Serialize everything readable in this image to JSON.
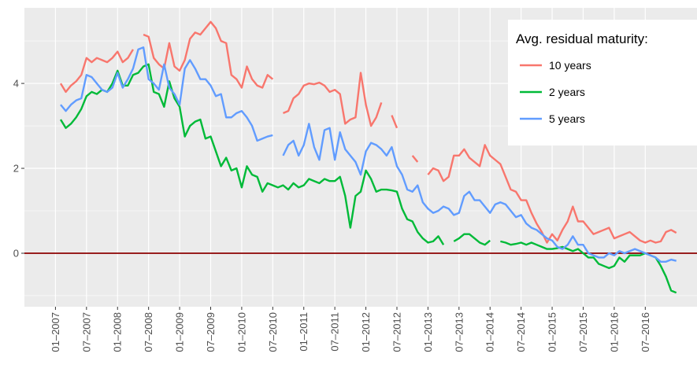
{
  "chart_data": {
    "type": "line",
    "legend_title": "Avg. residual maturity:",
    "legend_position": "top-right",
    "grid": true,
    "ylim": [
      -1.26,
      5.78
    ],
    "yticks": [
      0,
      2,
      4
    ],
    "xlim": [
      "07–2006",
      "05–2017"
    ],
    "xticks": [
      "01–2007",
      "07–2007",
      "01–2008",
      "07–2008",
      "01–2009",
      "07–2009",
      "01–2010",
      "07–2010",
      "01–2011",
      "07–2011",
      "01–2012",
      "07–2012",
      "01–2013",
      "07–2013",
      "01–2014",
      "07–2014",
      "01–2015",
      "07–2015",
      "01–2016",
      "07–2016"
    ],
    "hline": 0,
    "hline_color": "#8b0000",
    "x": [
      "02–2007",
      "03–2007",
      "04–2007",
      "05–2007",
      "06–2007",
      "07–2007",
      "08–2007",
      "09–2007",
      "10–2007",
      "11–2007",
      "12–2007",
      "01–2008",
      "02–2008",
      "03–2008",
      "04–2008",
      "05–2008",
      "06–2008",
      "07–2008",
      "08–2008",
      "09–2008",
      "10–2008",
      "11–2008",
      "12–2008",
      "01–2009",
      "02–2009",
      "03–2009",
      "04–2009",
      "05–2009",
      "06–2009",
      "07–2009",
      "08–2009",
      "09–2009",
      "10–2009",
      "11–2009",
      "12–2009",
      "01–2010",
      "02–2010",
      "03–2010",
      "04–2010",
      "05–2010",
      "06–2010",
      "07–2010",
      "08–2010",
      "09–2010",
      "10–2010",
      "11–2010",
      "12–2010",
      "01–2011",
      "02–2011",
      "03–2011",
      "04–2011",
      "05–2011",
      "06–2011",
      "07–2011",
      "08–2011",
      "09–2011",
      "10–2011",
      "11–2011",
      "12–2011",
      "01–2012",
      "02–2012",
      "03–2012",
      "04–2012",
      "05–2012",
      "06–2012",
      "07–2012",
      "08–2012",
      "09–2012",
      "10–2012",
      "11–2012",
      "12–2012",
      "01–2013",
      "02–2013",
      "03–2013",
      "04–2013",
      "05–2013",
      "06–2013",
      "07–2013",
      "08–2013",
      "09–2013",
      "10–2013",
      "11–2013",
      "12–2013",
      "01–2014",
      "02–2014",
      "03–2014",
      "04–2014",
      "05–2014",
      "06–2014",
      "07–2014",
      "08–2014",
      "09–2014",
      "10–2014",
      "11–2014",
      "12–2014",
      "01–2015",
      "02–2015",
      "03–2015",
      "04–2015",
      "05–2015",
      "06–2015",
      "07–2015",
      "08–2015",
      "09–2015",
      "10–2015",
      "11–2015",
      "12–2015",
      "01–2016",
      "02–2016",
      "03–2016",
      "04–2016",
      "05–2016",
      "06–2016",
      "07–2016",
      "08–2016",
      "09–2016",
      "10–2016",
      "11–2016",
      "12–2016",
      "01–2017"
    ],
    "series": [
      {
        "name": "10 years",
        "color": "#F8766D",
        "values": [
          4.0,
          3.8,
          3.95,
          4.05,
          4.2,
          4.6,
          4.5,
          4.6,
          4.55,
          4.5,
          4.6,
          4.75,
          4.5,
          4.6,
          4.8,
          null,
          5.15,
          5.1,
          4.6,
          4.45,
          4.35,
          4.95,
          4.4,
          4.3,
          4.55,
          5.05,
          5.2,
          5.15,
          5.3,
          5.45,
          5.3,
          5.0,
          4.95,
          4.2,
          4.1,
          3.9,
          4.4,
          4.1,
          3.95,
          3.9,
          4.2,
          4.1,
          null,
          3.3,
          3.35,
          3.65,
          3.75,
          3.95,
          4.0,
          3.98,
          4.02,
          3.95,
          3.8,
          3.85,
          3.75,
          3.05,
          3.15,
          3.2,
          4.25,
          3.5,
          3.0,
          3.2,
          3.55,
          null,
          3.25,
          2.95,
          null,
          null,
          2.3,
          2.15,
          null,
          1.85,
          2.0,
          1.95,
          1.7,
          1.8,
          2.3,
          2.3,
          2.45,
          2.25,
          2.15,
          2.05,
          2.55,
          2.3,
          2.2,
          2.1,
          1.8,
          1.5,
          1.45,
          1.25,
          1.25,
          0.95,
          0.7,
          0.5,
          0.25,
          0.45,
          0.3,
          0.55,
          0.75,
          1.1,
          0.75,
          0.75,
          0.6,
          0.45,
          0.5,
          0.55,
          0.6,
          0.35,
          0.4,
          0.45,
          0.5,
          0.4,
          0.3,
          0.25,
          0.3,
          0.25,
          0.28,
          0.5,
          0.55,
          0.48
        ]
      },
      {
        "name": "2 years",
        "color": "#00BA38",
        "values": [
          3.15,
          2.95,
          3.05,
          3.2,
          3.4,
          3.7,
          3.8,
          3.75,
          3.85,
          3.8,
          4.0,
          4.3,
          3.95,
          3.95,
          4.2,
          4.25,
          4.4,
          4.45,
          3.8,
          3.75,
          3.45,
          4.05,
          3.65,
          3.45,
          2.75,
          3.0,
          3.1,
          3.15,
          2.7,
          2.75,
          2.4,
          2.05,
          2.25,
          1.95,
          2.0,
          1.55,
          2.05,
          1.85,
          1.8,
          1.45,
          1.65,
          1.6,
          1.55,
          1.6,
          1.5,
          1.65,
          1.55,
          1.6,
          1.75,
          1.7,
          1.65,
          1.75,
          1.7,
          1.7,
          1.8,
          1.35,
          0.6,
          1.35,
          1.45,
          1.95,
          1.75,
          1.45,
          1.5,
          1.5,
          1.48,
          1.45,
          1.05,
          0.8,
          0.75,
          0.5,
          0.35,
          0.25,
          0.28,
          0.4,
          0.2,
          null,
          0.28,
          0.35,
          0.45,
          0.45,
          0.35,
          0.25,
          0.2,
          0.3,
          null,
          0.28,
          0.25,
          0.2,
          0.22,
          0.25,
          0.2,
          0.25,
          0.2,
          0.15,
          0.1,
          0.1,
          0.12,
          0.15,
          0.1,
          0.05,
          0.1,
          0.0,
          -0.1,
          -0.1,
          -0.25,
          -0.3,
          -0.35,
          -0.3,
          -0.1,
          -0.2,
          -0.05,
          -0.05,
          -0.05,
          0.0,
          -0.05,
          -0.1,
          -0.3,
          -0.55,
          -0.88,
          -0.93
        ]
      },
      {
        "name": "5 years",
        "color": "#619CFF",
        "values": [
          3.5,
          3.35,
          3.5,
          3.6,
          3.65,
          4.2,
          4.15,
          4.0,
          3.85,
          3.8,
          3.9,
          4.25,
          3.9,
          4.1,
          4.35,
          4.8,
          4.85,
          4.1,
          4.0,
          3.85,
          4.45,
          3.9,
          3.75,
          3.5,
          4.35,
          4.55,
          4.35,
          4.1,
          4.1,
          3.95,
          3.7,
          3.75,
          3.2,
          3.2,
          3.3,
          3.35,
          3.2,
          3.0,
          2.65,
          2.7,
          2.75,
          2.78,
          null,
          2.3,
          2.55,
          2.65,
          2.3,
          2.55,
          3.05,
          2.5,
          2.2,
          2.9,
          2.95,
          2.2,
          2.85,
          2.45,
          2.3,
          2.15,
          1.85,
          2.4,
          2.6,
          2.55,
          2.45,
          2.3,
          2.5,
          2.05,
          1.85,
          1.5,
          1.45,
          1.6,
          1.2,
          1.05,
          0.95,
          1.0,
          1.1,
          1.05,
          0.9,
          0.95,
          1.35,
          1.45,
          1.25,
          1.25,
          1.1,
          0.95,
          1.15,
          1.2,
          1.15,
          1.0,
          0.85,
          0.9,
          0.7,
          0.6,
          0.55,
          0.45,
          0.35,
          0.3,
          0.15,
          0.1,
          0.2,
          0.4,
          0.2,
          0.2,
          0.0,
          -0.05,
          -0.1,
          -0.1,
          0.0,
          -0.05,
          0.05,
          0.0,
          0.05,
          0.1,
          0.05,
          0.0,
          -0.05,
          -0.1,
          -0.2,
          -0.2,
          -0.15,
          -0.18
        ]
      }
    ]
  }
}
